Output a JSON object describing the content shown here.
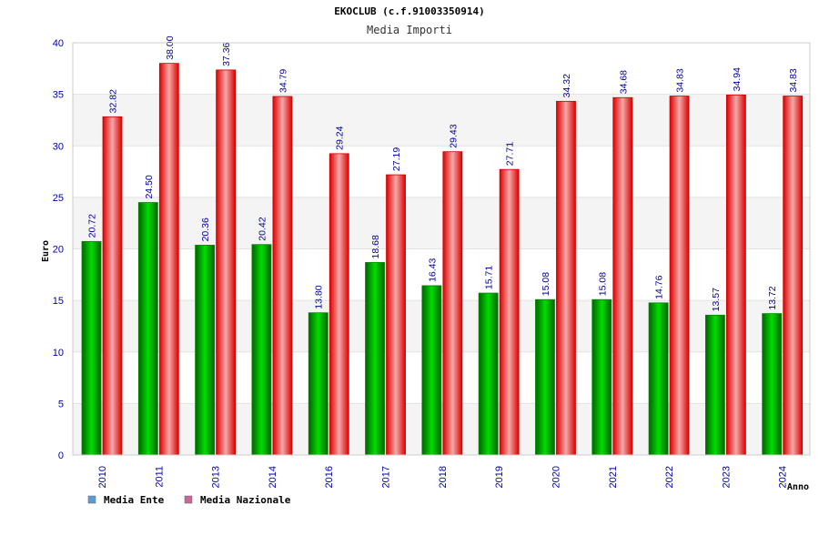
{
  "chart_data": {
    "type": "bar",
    "title": "EKOCLUB (c.f.91003350914)",
    "subtitle": "Media Importi",
    "ylabel": "Euro",
    "xlabel": "Anno",
    "ylim": [
      0,
      40
    ],
    "yticks": [
      "0",
      "5",
      "10",
      "15",
      "20",
      "25",
      "30",
      "35",
      "40"
    ],
    "grid": true,
    "legend_position": "bottom-left",
    "categories": [
      "2010",
      "2011",
      "2013",
      "2014",
      "2016",
      "2017",
      "2018",
      "2019",
      "2020",
      "2021",
      "2022",
      "2023",
      "2024"
    ],
    "series": [
      {
        "name": "Media Ente",
        "color": "#00c000",
        "legend_color": "#5b9bd5",
        "values": [
          20.72,
          24.5,
          20.36,
          20.42,
          13.8,
          18.68,
          16.43,
          15.71,
          15.08,
          15.08,
          14.76,
          13.57,
          13.72
        ],
        "labels": [
          "20.72",
          "24.50",
          "20.36",
          "20.42",
          "13.80",
          "18.68",
          "16.43",
          "15.71",
          "15.08",
          "15.08",
          "14.76",
          "13.57",
          "13.72"
        ]
      },
      {
        "name": "Media Nazionale",
        "color": "#ff0000",
        "legend_color": "#cc6699",
        "values": [
          32.82,
          38.0,
          37.36,
          34.79,
          29.24,
          27.19,
          29.43,
          27.71,
          34.32,
          34.68,
          34.83,
          34.94,
          34.83
        ],
        "labels": [
          "32.82",
          "38.00",
          "37.36",
          "34.79",
          "29.24",
          "27.19",
          "29.43",
          "27.71",
          "34.32",
          "34.68",
          "34.83",
          "34.94",
          "34.83"
        ]
      }
    ]
  }
}
